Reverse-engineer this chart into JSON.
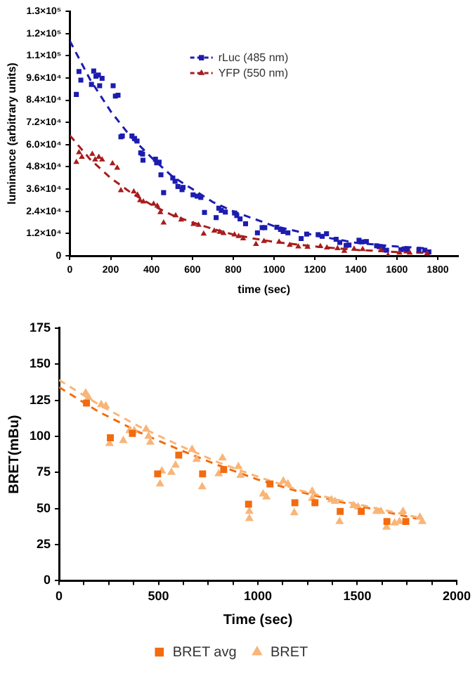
{
  "chart_data": [
    {
      "type": "scatter",
      "xlabel": "time (sec)",
      "ylabel": "luminance (arbitrary units)",
      "xlim": [
        0,
        1900
      ],
      "xticks": [
        0,
        200,
        400,
        600,
        800,
        1000,
        1200,
        1400,
        1600,
        1800
      ],
      "ylim": [
        0,
        132000
      ],
      "yticks": [
        0,
        {
          "value": 12000,
          "label": "1.2×10⁴"
        },
        {
          "value": 24000,
          "label": "2.4×10⁴"
        },
        {
          "value": 36000,
          "label": "3.6×10⁴"
        },
        {
          "value": 48000,
          "label": "4.8×10⁴"
        },
        {
          "value": 60000,
          "label": "6.0×10⁴"
        },
        {
          "value": 72000,
          "label": "7.2×10⁴"
        },
        {
          "value": 84000,
          "label": "8.4×10⁴"
        },
        {
          "value": 96000,
          "label": "9.6×10⁴"
        },
        {
          "value": 108000,
          "label": "1.1×10⁵"
        },
        {
          "value": 120000,
          "label": "1.2×10⁵"
        },
        {
          "value": 132000,
          "label": "1.3×10⁵"
        }
      ],
      "grid": false,
      "legend": "top",
      "series": [
        {
          "name": "rLuc (485 nm)",
          "color": "#1c1cb0",
          "marker": "square",
          "x": [
            32,
            45,
            54,
            106,
            117,
            128,
            140,
            146,
            158,
            212,
            223,
            236,
            250,
            257,
            304,
            317,
            329,
            347,
            358,
            356,
            419,
            425,
            437,
            446,
            459,
            504,
            515,
            529,
            549,
            554,
            603,
            623,
            641,
            659,
            716,
            729,
            741,
            761,
            806,
            817,
            833,
            860,
            918,
            941,
            954,
            1013,
            1031,
            1044,
            1067,
            1132,
            1159,
            1215,
            1235,
            1256,
            1303,
            1321,
            1352,
            1366,
            1415,
            1429,
            1451,
            1501,
            1514,
            1532,
            1550,
            1620,
            1636,
            1652,
            1708,
            1737,
            1757
          ],
          "values": [
            87100,
            99500,
            94800,
            92500,
            99700,
            96900,
            97600,
            91800,
            95800,
            91800,
            86200,
            86700,
            64200,
            64700,
            64700,
            63300,
            61900,
            55600,
            51600,
            54900,
            52100,
            50200,
            50500,
            43700,
            34100,
            42000,
            40200,
            37400,
            35700,
            36900,
            32900,
            32200,
            31500,
            23400,
            20600,
            25700,
            24500,
            23600,
            23100,
            21700,
            19900,
            17300,
            12400,
            15200,
            15200,
            15400,
            14200,
            13100,
            12400,
            9300,
            11700,
            11400,
            10500,
            11900,
            8900,
            7200,
            5600,
            5800,
            8400,
            7500,
            7700,
            5400,
            4900,
            4200,
            3000,
            3300,
            3700,
            3500,
            3300,
            3000,
            2100
          ]
        },
        {
          "name": "YFP (550 nm)",
          "color": "#a81c1c",
          "marker": "triangle",
          "x": [
            32,
            45,
            59,
            110,
            124,
            142,
            158,
            209,
            232,
            250,
            313,
            331,
            344,
            360,
            410,
            428,
            443,
            459,
            518,
            545,
            605,
            630,
            655,
            707,
            734,
            752,
            806,
            826,
            848,
            911,
            950,
            1024,
            1076,
            1118,
            1163,
            1226,
            1258,
            1310,
            1343,
            1391,
            1433,
            1523,
            1557,
            1613,
            1663,
            1748
          ],
          "values": [
            50500,
            55800,
            53300,
            54900,
            51900,
            53300,
            51900,
            49800,
            47400,
            35300,
            34600,
            32900,
            29900,
            29200,
            28000,
            26900,
            23400,
            17800,
            21700,
            19400,
            17100,
            16600,
            11900,
            13500,
            12800,
            12100,
            11400,
            10500,
            9300,
            6300,
            7900,
            7500,
            5800,
            4900,
            4700,
            5100,
            4400,
            4000,
            2600,
            3700,
            3500,
            3000,
            200,
            1600,
            1600,
            1200
          ]
        },
        {
          "type": "line",
          "color": "#1c1cb0",
          "marker": "none",
          "line_style": "dashed",
          "x": [
            0,
            100,
            200,
            300,
            400,
            500,
            600,
            700,
            800,
            900,
            1000,
            1200,
            1400,
            1600,
            1750
          ],
          "values": [
            116000,
            95000,
            78000,
            64000,
            53000,
            43000,
            36000,
            29000,
            24000,
            20000,
            16000,
            11000,
            7000,
            5000,
            4000
          ]
        },
        {
          "type": "line",
          "color": "#a81c1c",
          "marker": "none",
          "line_style": "dashed",
          "x": [
            0,
            100,
            200,
            300,
            400,
            500,
            600,
            700,
            800,
            900,
            1000,
            1200,
            1400,
            1600,
            1750
          ],
          "values": [
            65000,
            52000,
            42000,
            34000,
            27500,
            22000,
            18000,
            14500,
            11500,
            9300,
            7500,
            5000,
            3200,
            2000,
            1500
          ]
        }
      ]
    },
    {
      "type": "scatter",
      "xlabel": "Time (sec)",
      "ylabel": "BRET(mBu)",
      "xlim": [
        0,
        2000
      ],
      "xticks": [
        0,
        {
          "value": 125,
          "label": null
        },
        {
          "value": 250,
          "label": null
        },
        {
          "value": 375,
          "label": null
        },
        500,
        {
          "value": 625,
          "label": null
        },
        {
          "value": 750,
          "label": null
        },
        {
          "value": 875,
          "label": null
        },
        1000,
        {
          "value": 1125,
          "label": null
        },
        {
          "value": 1250,
          "label": null
        },
        {
          "value": 1375,
          "label": null
        },
        1500,
        {
          "value": 1625,
          "label": null
        },
        {
          "value": 1750,
          "label": null
        },
        {
          "value": 1875,
          "label": null
        },
        2000
      ],
      "ylim": [
        0,
        175
      ],
      "yticks": [
        0,
        25,
        50,
        75,
        100,
        125,
        150,
        175
      ],
      "grid": false,
      "legend": "bottom",
      "series": [
        {
          "name": "BRET",
          "color": "#f9b577",
          "marker": "triangle",
          "x": [
            134,
            148,
            212,
            235,
            254,
            323,
            355,
            378,
            438,
            450,
            459,
            508,
            517,
            565,
            586,
            669,
            692,
            720,
            803,
            822,
            902,
            913,
            957,
            957,
            1026,
            1043,
            1128,
            1151,
            1183,
            1273,
            1273,
            1370,
            1388,
            1411,
            1481,
            1504,
            1596,
            1619,
            1647,
            1688,
            1730,
            1712,
            1815,
            1827
          ],
          "values": [
            130,
            127,
            122,
            121,
            95,
            97,
            104,
            104,
            105,
            100,
            96,
            67,
            76,
            75,
            80,
            91,
            84,
            65,
            74,
            85,
            79,
            73,
            43,
            48,
            60,
            58,
            69,
            67,
            47,
            62,
            57,
            56,
            55,
            41,
            52,
            51,
            48,
            48,
            37,
            40,
            48,
            41,
            44,
            41
          ]
        },
        {
          "name": "BRET avg",
          "color": "#f26b0f",
          "marker": "square",
          "x": [
            138,
            258,
            369,
            496,
            602,
            722,
            828,
            953,
            1061,
            1186,
            1287,
            1414,
            1520,
            1649,
            1744
          ],
          "values": [
            123,
            99,
            102,
            74,
            87,
            74,
            77,
            53,
            67,
            54,
            54,
            48,
            48,
            41,
            41
          ]
        },
        {
          "type": "line",
          "color": "#f9b577",
          "marker": "none",
          "line_style": "dashed",
          "x": [
            0,
            200,
            400,
            600,
            800,
            1000,
            1200,
            1400,
            1600,
            1800
          ],
          "values": [
            139,
            122,
            107,
            94,
            82,
            72,
            63,
            56,
            50,
            44
          ]
        },
        {
          "type": "line",
          "color": "#f26b0f",
          "marker": "none",
          "line_style": "dashed",
          "x": [
            0,
            200,
            400,
            600,
            800,
            1000,
            1200,
            1400,
            1600,
            1800
          ],
          "values": [
            134,
            117,
            103,
            91,
            80,
            70,
            62,
            55,
            49,
            43
          ]
        }
      ]
    }
  ]
}
